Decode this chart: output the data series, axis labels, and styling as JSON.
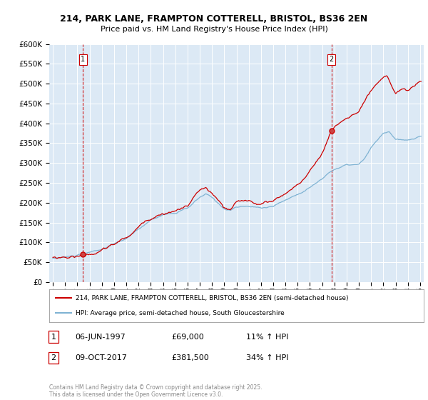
{
  "title": "214, PARK LANE, FRAMPTON COTTERELL, BRISTOL, BS36 2EN",
  "subtitle": "Price paid vs. HM Land Registry's House Price Index (HPI)",
  "fig_bg_color": "#ffffff",
  "plot_bg_color": "#dce9f5",
  "red_line_color": "#cc0000",
  "blue_line_color": "#7fb3d3",
  "marker1_x": 1997.44,
  "marker1_y": 69000,
  "marker2_x": 2017.77,
  "marker2_y": 381500,
  "annotation1": {
    "label": "1",
    "date": "06-JUN-1997",
    "price": "£69,000",
    "hpi": "11% ↑ HPI"
  },
  "annotation2": {
    "label": "2",
    "date": "09-OCT-2017",
    "price": "£381,500",
    "hpi": "34% ↑ HPI"
  },
  "legend1": "214, PARK LANE, FRAMPTON COTTERELL, BRISTOL, BS36 2EN (semi-detached house)",
  "legend2": "HPI: Average price, semi-detached house, South Gloucestershire",
  "footer": "Contains HM Land Registry data © Crown copyright and database right 2025.\nThis data is licensed under the Open Government Licence v3.0.",
  "ylim": [
    0,
    600000
  ],
  "yticks": [
    0,
    50000,
    100000,
    150000,
    200000,
    250000,
    300000,
    350000,
    400000,
    450000,
    500000,
    550000,
    600000
  ],
  "xlim": [
    1994.7,
    2025.3
  ],
  "xticks": [
    1995,
    1996,
    1997,
    1998,
    1999,
    2000,
    2001,
    2002,
    2003,
    2004,
    2005,
    2006,
    2007,
    2008,
    2009,
    2010,
    2011,
    2012,
    2013,
    2014,
    2015,
    2016,
    2017,
    2018,
    2019,
    2020,
    2021,
    2022,
    2023,
    2024,
    2025
  ]
}
